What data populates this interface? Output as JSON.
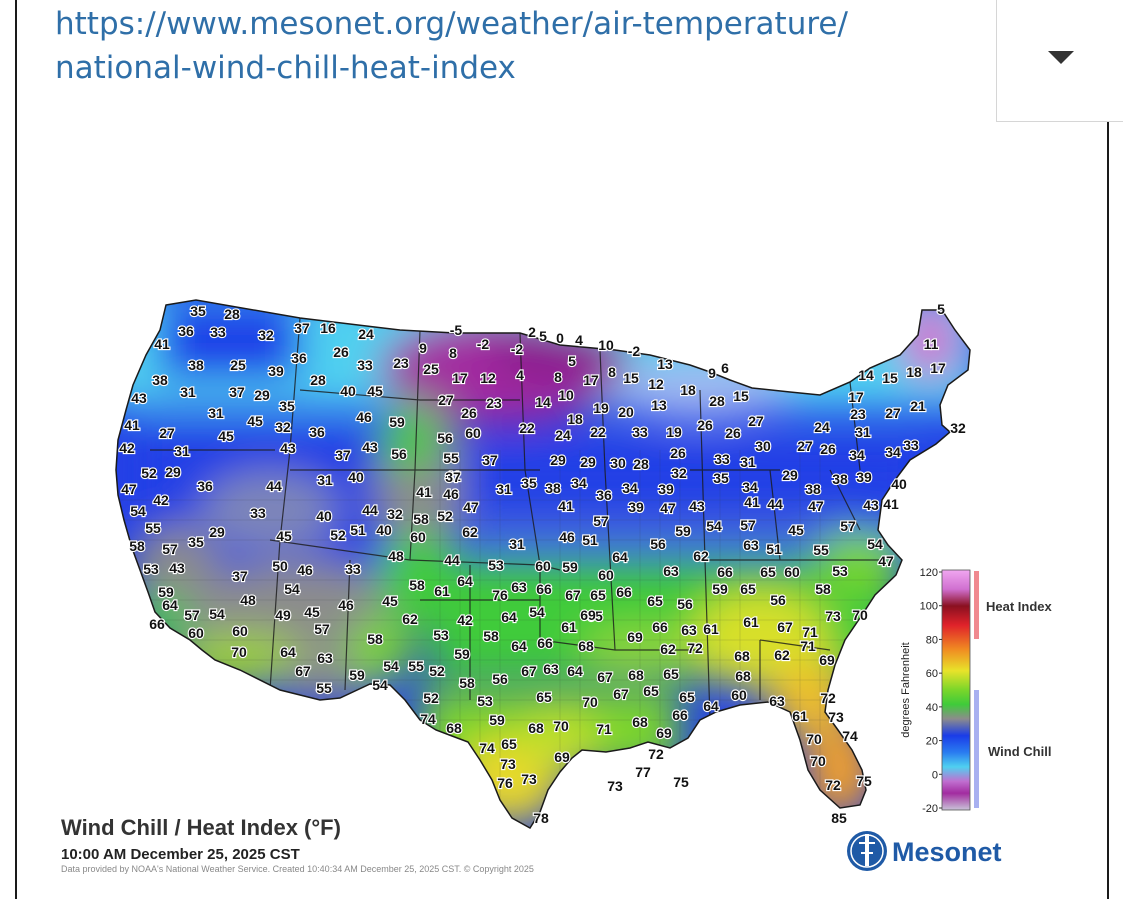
{
  "url": {
    "line1": "https://www.mesonet.org/weather/air-temperature/",
    "line2": "national-wind-chill-heat-index"
  },
  "dropdown": {
    "icon": "chevron-down-icon"
  },
  "map": {
    "title": "Wind Chill / Heat Index (°F)",
    "timestamp": "10:00 AM December 25, 2025 CST",
    "credit": "Data provided by NOAA's National Weather Service. Created 10:40:34 AM December 25, 2025 CST. © Copyright 2025",
    "logo_text": "Mesonet",
    "legend": {
      "axis_label": "degrees Fahrenheit",
      "ticks": [
        "120",
        "100",
        "80",
        "60",
        "40",
        "20",
        "0",
        "-20"
      ],
      "heat_label": "Heat Index",
      "wind_label": "Wind Chill"
    },
    "colors": {
      "very_cold": "#c9c3d8",
      "magenta": "#a22ca0",
      "cyan": "#4fd0f0",
      "blue": "#1a3ce8",
      "gray": "#8c8c8c",
      "green": "#3fcb3a",
      "yellow": "#e8e32a",
      "orange": "#f2a12a"
    },
    "station_values": [
      "35",
      "28",
      "36",
      "33",
      "32",
      "37",
      "16",
      "24",
      "41",
      "38",
      "25",
      "39",
      "36",
      "26",
      "33",
      "23",
      "-5",
      "-2",
      "-2",
      "2",
      "5",
      "0",
      "4",
      "10",
      "-2",
      "9",
      "8",
      "25",
      "17",
      "12",
      "4",
      "8",
      "5",
      "17",
      "8",
      "15",
      "12",
      "13",
      "18",
      "9",
      "6",
      "14",
      "15",
      "18",
      "17",
      "11",
      "5",
      "38",
      "31",
      "37",
      "29",
      "28",
      "40",
      "45",
      "35",
      "43",
      "31",
      "45",
      "32",
      "36",
      "46",
      "59",
      "27",
      "26",
      "23",
      "14",
      "10",
      "19",
      "20",
      "13",
      "28",
      "15",
      "17",
      "23",
      "27",
      "21",
      "41",
      "27",
      "45",
      "42",
      "31",
      "43",
      "37",
      "43",
      "56",
      "56",
      "60",
      "55",
      "37",
      "22",
      "18",
      "24",
      "22",
      "33",
      "19",
      "26",
      "26",
      "27",
      "24",
      "31",
      "32",
      "52",
      "29",
      "47",
      "36",
      "44",
      "31",
      "40",
      "41",
      "29",
      "29",
      "30",
      "28",
      "26",
      "33",
      "31",
      "30",
      "27",
      "26",
      "34",
      "34",
      "33",
      "42",
      "54",
      "33",
      "41",
      "46",
      "52",
      "47",
      "31",
      "35",
      "38",
      "34",
      "36",
      "34",
      "39",
      "32",
      "35",
      "34",
      "29",
      "38",
      "38",
      "39",
      "40",
      "55",
      "40",
      "44",
      "32",
      "58",
      "62",
      "37",
      "41",
      "39",
      "47",
      "43",
      "41",
      "44",
      "47",
      "43",
      "41",
      "58",
      "57",
      "35",
      "29",
      "45",
      "52",
      "51",
      "40",
      "60",
      "31",
      "46",
      "51",
      "57",
      "56",
      "59",
      "54",
      "57",
      "45",
      "57",
      "54",
      "53",
      "43",
      "50",
      "46",
      "33",
      "48",
      "44",
      "53",
      "60",
      "59",
      "64",
      "60",
      "63",
      "62",
      "63",
      "51",
      "55",
      "37",
      "54",
      "58",
      "64",
      "61",
      "63",
      "66",
      "67",
      "65",
      "66",
      "59",
      "65",
      "66",
      "65",
      "60",
      "53",
      "47",
      "59",
      "48",
      "49",
      "45",
      "46",
      "45",
      "62",
      "65",
      "56",
      "56",
      "65",
      "64",
      "57",
      "54",
      "57",
      "42",
      "64",
      "54",
      "61",
      "69",
      "58",
      "66",
      "63",
      "61",
      "61",
      "67",
      "71",
      "73",
      "70",
      "66",
      "60",
      "60",
      "58",
      "53",
      "58",
      "64",
      "66",
      "68",
      "69",
      "62",
      "72",
      "70",
      "64",
      "63",
      "54",
      "55",
      "52",
      "59",
      "58",
      "56",
      "67",
      "63",
      "64",
      "67",
      "68",
      "65",
      "68",
      "62",
      "71",
      "69",
      "67",
      "59",
      "54",
      "55",
      "52",
      "53",
      "65",
      "70",
      "67",
      "65",
      "65",
      "64",
      "60",
      "68",
      "63",
      "72",
      "74",
      "68",
      "59",
      "68",
      "70",
      "71",
      "68",
      "66",
      "61",
      "73",
      "74",
      "65",
      "69",
      "72",
      "70",
      "74",
      "73",
      "69",
      "70",
      "76",
      "73",
      "73",
      "77",
      "75",
      "72",
      "75",
      "78",
      "85",
      "76"
    ]
  }
}
